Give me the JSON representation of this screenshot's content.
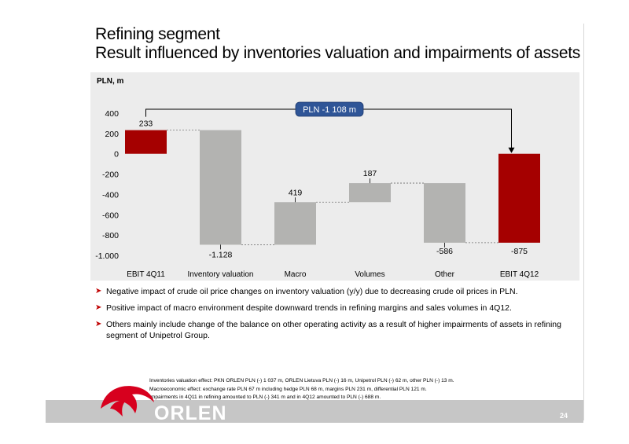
{
  "slide": {
    "title_line1": "Refining segment",
    "title_line2": "Result influenced by inventories valuation and impairments of assets",
    "page_number": "24"
  },
  "chart_data": {
    "type": "waterfall",
    "unit_label": "PLN, m",
    "ylim": [
      -1000,
      400
    ],
    "yticks": [
      400,
      200,
      0,
      -200,
      -400,
      -600,
      -800,
      -1000
    ],
    "ytick_labels": [
      "400",
      "200",
      "0",
      "-200",
      "-400",
      "-600",
      "-800",
      "-1.000"
    ],
    "categories": [
      "EBIT 4Q11",
      "Inventory valuation",
      "Macro",
      "Volumes",
      "Other",
      "EBIT 4Q12"
    ],
    "bars": [
      {
        "category": "EBIT 4Q11",
        "start": 0,
        "end": 233,
        "label": "233",
        "kind": "total",
        "color": "#a50000"
      },
      {
        "category": "Inventory valuation",
        "start": 233,
        "end": -895,
        "label": "-1.128",
        "kind": "delta",
        "color": "#b3b3b1"
      },
      {
        "category": "Macro",
        "start": -895,
        "end": -476,
        "label": "419",
        "kind": "delta",
        "color": "#b3b3b1"
      },
      {
        "category": "Volumes",
        "start": -476,
        "end": -289,
        "label": "187",
        "kind": "delta",
        "color": "#b3b3b1"
      },
      {
        "category": "Other",
        "start": -289,
        "end": -875,
        "label": "-586",
        "kind": "delta",
        "color": "#b3b3b1"
      },
      {
        "category": "EBIT 4Q12",
        "start": 0,
        "end": -875,
        "label": "-875",
        "kind": "total",
        "color": "#a50000"
      }
    ],
    "callout": {
      "text": "PLN -1 108 m",
      "from": "EBIT 4Q11",
      "to": "EBIT 4Q12",
      "color": "#2f5597"
    },
    "grid": false
  },
  "bullets": [
    "Negative impact of crude oil price changes on inventory valuation (y/y) due to decreasing crude oil prices in PLN.",
    "Positive impact of macro environment despite downward trends in refining margins and sales volumes in 4Q12.",
    "Others mainly include change of the balance on other operating activity as a result of higher impairments of assets in refining segment of Unipetrol Group."
  ],
  "footnotes": [
    "Inventories valuation effect: PKN ORLEN PLN (-) 1 037 m, ORLEN Lietuva PLN (-) 16 m, Unipetrol PLN (-) 62 m, other PLN (-) 13 m.",
    "Macroeconomic effect: exchange rate PLN 67 m including hedge PLN 68 m, margins PLN 231 m, differential PLN 121 m.",
    "Impairments in 4Q11 in refining amounted to PLN (-) 341 m and in 4Q12 amounted to PLN (-) 688 m."
  ],
  "logo": {
    "text": "ORLEN",
    "color": "#d7001e"
  }
}
